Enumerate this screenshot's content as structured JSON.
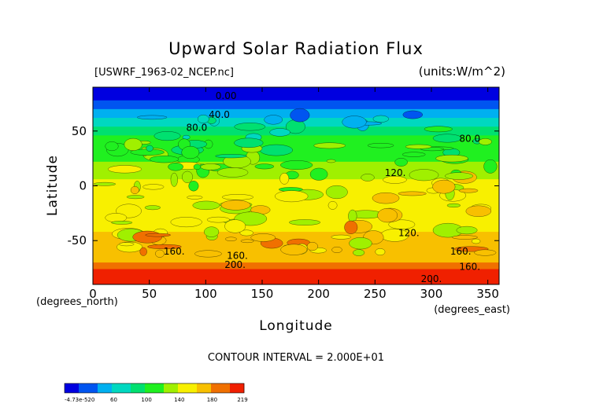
{
  "chart_data": {
    "type": "heatmap",
    "title": "Upward Solar Radiation Flux",
    "file_label": "[USWRF_1963-02_NCEP.nc]",
    "units_label": "(units:W/m^2)",
    "xlabel": "Longitude",
    "ylabel": "Latitude",
    "x_unit": "(degrees_east)",
    "y_unit": "(degrees_north)",
    "xlim": [
      0,
      360
    ],
    "ylim": [
      -90,
      90
    ],
    "x_ticks": [
      0,
      50,
      100,
      150,
      200,
      250,
      300,
      350
    ],
    "y_ticks": [
      -50,
      0,
      50
    ],
    "contour_interval": "CONTOUR INTERVAL = 2.000E+01",
    "contour_labels": [
      {
        "text": "0.00",
        "x": 118,
        "y": 82
      },
      {
        "text": "40.0",
        "x": 112,
        "y": 65
      },
      {
        "text": "80.0",
        "x": 92,
        "y": 53
      },
      {
        "text": "80.0",
        "x": 334,
        "y": 43
      },
      {
        "text": "120.",
        "x": 268,
        "y": 12
      },
      {
        "text": "120.",
        "x": 280,
        "y": -43
      },
      {
        "text": "160.",
        "x": 72,
        "y": -60
      },
      {
        "text": "160.",
        "x": 128,
        "y": -64
      },
      {
        "text": "160.",
        "x": 326,
        "y": -60
      },
      {
        "text": "200.",
        "x": 126,
        "y": -72
      },
      {
        "text": "200.",
        "x": 300,
        "y": -85
      },
      {
        "text": "160.",
        "x": 334,
        "y": -74
      }
    ],
    "colorbar": {
      "min_label": "-4.73e-520",
      "tick_labels": [
        "60",
        "100",
        "140",
        "180",
        "219"
      ],
      "tick_values": [
        60,
        100,
        140,
        180,
        219
      ],
      "min": 0,
      "max": 219
    },
    "colors": {
      "levels": [
        "#3a00a8",
        "#0000e0",
        "#0055f0",
        "#00b0f0",
        "#00d8c0",
        "#00e070",
        "#20f020",
        "#a0f000",
        "#f8f000",
        "#f8c000",
        "#f07000",
        "#f02000",
        "#f8a0a8"
      ]
    },
    "zonal_profile": [
      {
        "lat": 90,
        "value": 0
      },
      {
        "lat": 84,
        "value": 5
      },
      {
        "lat": 78,
        "value": 25
      },
      {
        "lat": 70,
        "value": 45
      },
      {
        "lat": 62,
        "value": 68
      },
      {
        "lat": 54,
        "value": 84
      },
      {
        "lat": 46,
        "value": 96
      },
      {
        "lat": 38,
        "value": 104
      },
      {
        "lat": 30,
        "value": 112
      },
      {
        "lat": 22,
        "value": 125
      },
      {
        "lat": 14,
        "value": 134
      },
      {
        "lat": 6,
        "value": 138
      },
      {
        "lat": -2,
        "value": 145
      },
      {
        "lat": -10,
        "value": 150
      },
      {
        "lat": -18,
        "value": 150
      },
      {
        "lat": -26,
        "value": 148
      },
      {
        "lat": -34,
        "value": 150
      },
      {
        "lat": -42,
        "value": 160
      },
      {
        "lat": -50,
        "value": 164
      },
      {
        "lat": -58,
        "value": 162
      },
      {
        "lat": -64,
        "value": 168
      },
      {
        "lat": -70,
        "value": 182
      },
      {
        "lat": -76,
        "value": 210
      },
      {
        "lat": -82,
        "value": 214
      },
      {
        "lat": -90,
        "value": 215
      }
    ]
  }
}
